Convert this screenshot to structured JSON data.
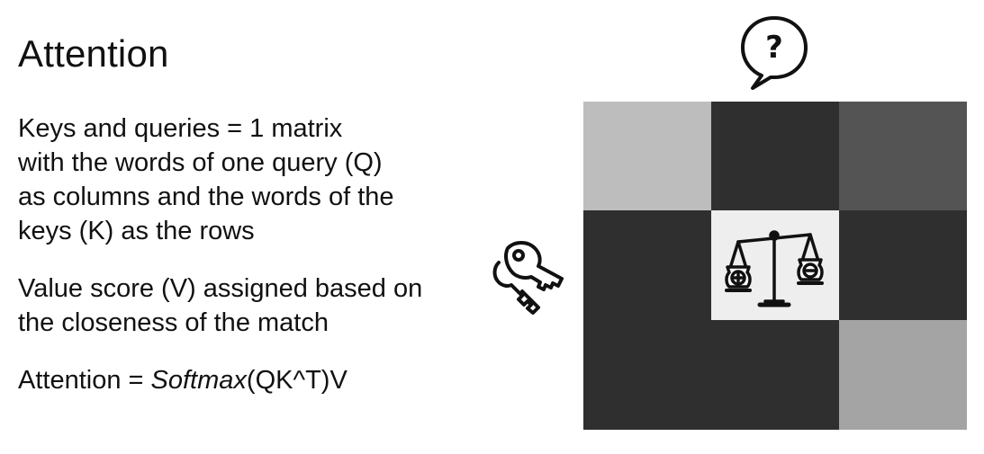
{
  "title": "Attention",
  "paragraph1": [
    "Keys and queries = 1 matrix",
    "with the words of one query (Q)",
    "as columns and the words of the",
    "keys (K) as the rows"
  ],
  "paragraph2": [
    "Value score (V) assigned based on",
    "the closeness of the match"
  ],
  "formula": {
    "prefix": "Attention = ",
    "func": "Softmax",
    "suffix": "(QK^T)V"
  },
  "icons": {
    "query": "question-speech-bubble-icon",
    "key": "keys-icon",
    "scale": "balance-scale-icon",
    "question_mark": "?"
  },
  "matrix": {
    "rows": 3,
    "cols": 3,
    "cell_colors": [
      [
        "#bdbdbd",
        "#2f2f2f",
        "#545454"
      ],
      [
        "#2f2f2f",
        "#eeeeee",
        "#2f2f2f"
      ],
      [
        "#2f2f2f",
        "#2f2f2f",
        "#a4a4a4"
      ]
    ]
  }
}
